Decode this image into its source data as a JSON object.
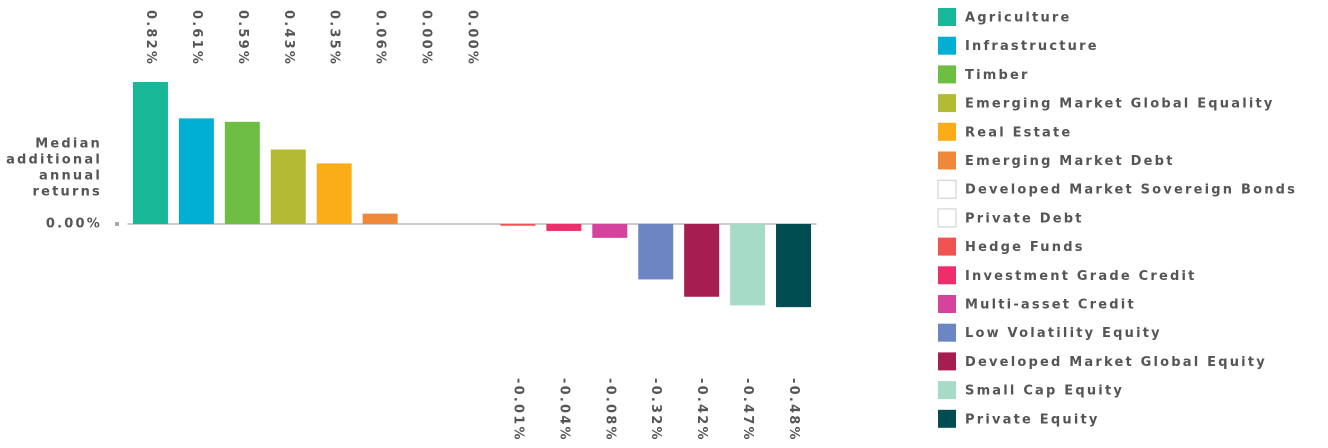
{
  "chart_data": {
    "type": "bar",
    "y_label": [
      "Median",
      "additional",
      "annual",
      "returns"
    ],
    "categories": [
      "Agriculture",
      "Infrastructure",
      "Timber",
      "Emerging Market Global Equality",
      "Real Estate",
      "Emerging Market Debt",
      "Developed Market Sovereign Bonds",
      "Private Debt",
      "Hedge Funds",
      "Investment Grade Credit",
      "Multi-asset Credit",
      "Low Volatility Equity",
      "Developed Market Global Equity",
      "Small Cap Equity",
      "Private Equity"
    ],
    "values": [
      0.82,
      0.61,
      0.59,
      0.43,
      0.35,
      0.06,
      0.0,
      0.0,
      -0.01,
      -0.04,
      -0.08,
      -0.32,
      -0.42,
      -0.47,
      -0.48
    ],
    "value_labels": [
      "0.82%",
      "0.61%",
      "0.59%",
      "0.43%",
      "0.35%",
      "0.06%",
      "0.00%",
      "0.00%",
      "-0.01%",
      "-0.04%",
      "-0.08%",
      "-0.32%",
      "-0.42%",
      "-0.47%",
      "-0.48%"
    ],
    "colors": [
      "#16b897",
      "#00afd3",
      "#6fbe44",
      "#b3bb35",
      "#fbad18",
      "#f0883a",
      "#ffffff",
      "#ffffff",
      "#f05352",
      "#ee2e6b",
      "#d4439c",
      "#6c85c3",
      "#a61d4f",
      "#a6dbc8",
      "#004d51"
    ],
    "ylim": [
      -0.5,
      0.85
    ],
    "yticks": [
      {
        "value": 0,
        "label": "0.00%"
      }
    ],
    "legend": "right"
  }
}
